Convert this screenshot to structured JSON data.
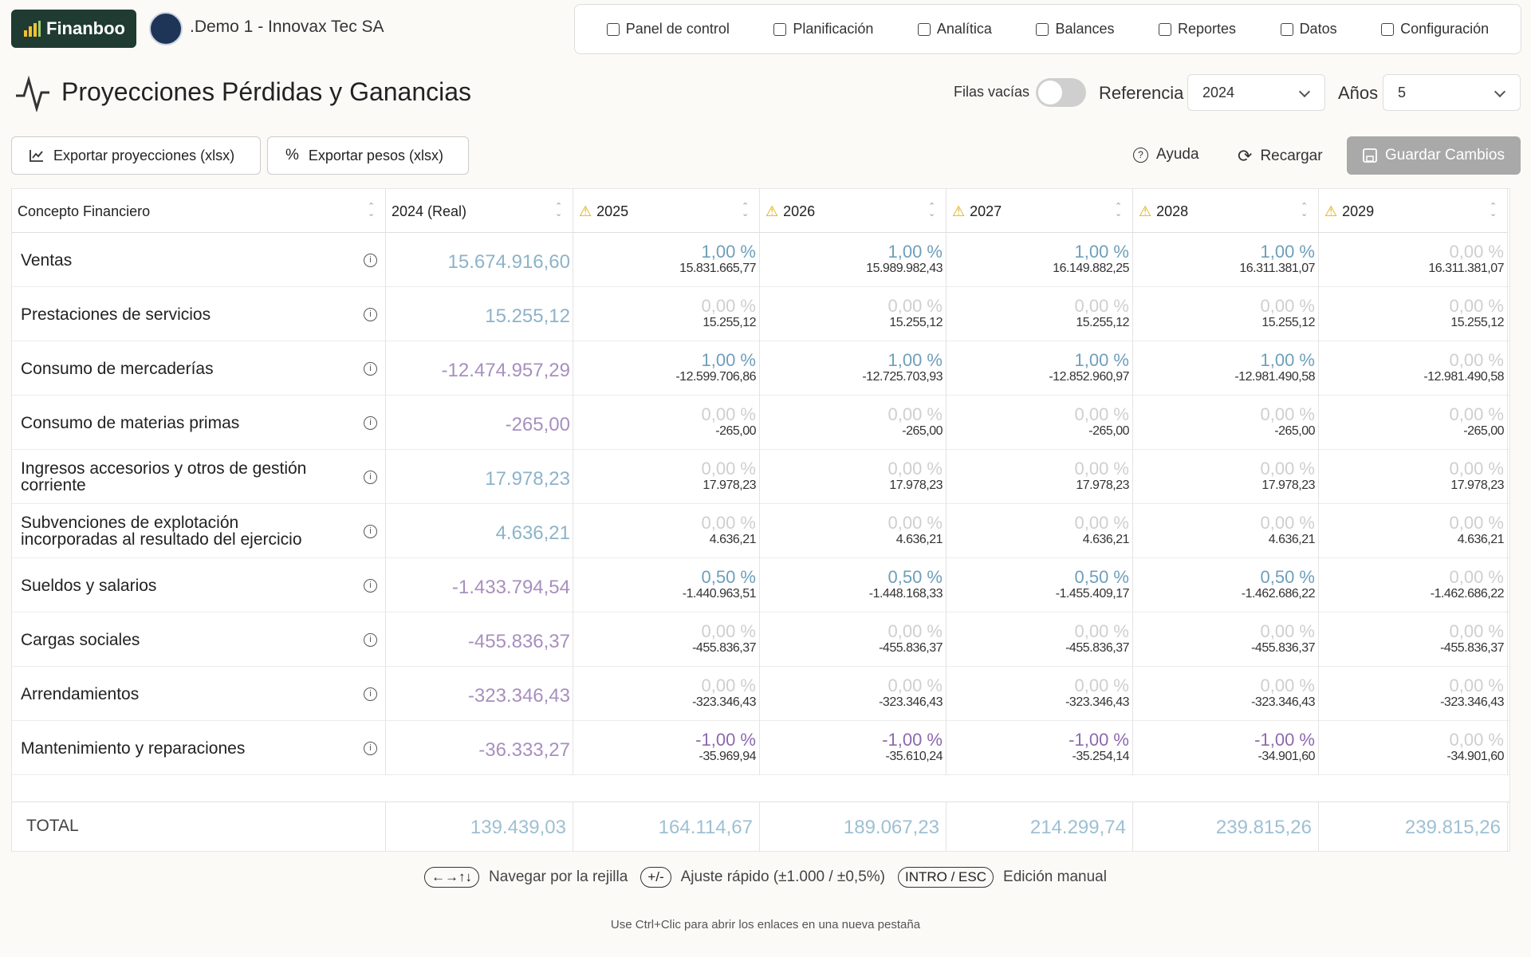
{
  "brand": "Finanboo",
  "company": ".Demo 1 - Innovax Tec SA",
  "nav": [
    "Panel de control",
    "Planificación",
    "Analítica",
    "Balances",
    "Reportes",
    "Datos",
    "Configuración"
  ],
  "page_title": "Proyecciones Pérdidas y Ganancias",
  "controls": {
    "empty_rows_label": "Filas vacías",
    "reference_label": "Referencia",
    "reference_value": "2024",
    "years_label": "Años",
    "years_value": "5"
  },
  "buttons": {
    "export_projections": "Exportar proyecciones (xlsx)",
    "export_weights": "Exportar pesos (xlsx)",
    "help": "Ayuda",
    "reload": "Recargar",
    "save": "Guardar Cambios"
  },
  "table": {
    "columns": [
      "Concepto Financiero",
      "2024 (Real)",
      "2025",
      "2026",
      "2027",
      "2028",
      "2029"
    ],
    "rows": [
      {
        "concept": "Ventas",
        "real": "15.674.916,60",
        "cells": [
          {
            "pct": "1,00 %",
            "amount": "15.831.665,77"
          },
          {
            "pct": "1,00 %",
            "amount": "15.989.982,43"
          },
          {
            "pct": "1,00 %",
            "amount": "16.149.882,25"
          },
          {
            "pct": "1,00 %",
            "amount": "16.311.381,07"
          },
          {
            "pct": "0,00 %",
            "amount": "16.311.381,07"
          }
        ]
      },
      {
        "concept": "Prestaciones de servicios",
        "real": "15.255,12",
        "cells": [
          {
            "pct": "0,00 %",
            "amount": "15.255,12"
          },
          {
            "pct": "0,00 %",
            "amount": "15.255,12"
          },
          {
            "pct": "0,00 %",
            "amount": "15.255,12"
          },
          {
            "pct": "0,00 %",
            "amount": "15.255,12"
          },
          {
            "pct": "0,00 %",
            "amount": "15.255,12"
          }
        ]
      },
      {
        "concept": "Consumo de mercaderías",
        "real": "-12.474.957,29",
        "cells": [
          {
            "pct": "1,00 %",
            "amount": "-12.599.706,86"
          },
          {
            "pct": "1,00 %",
            "amount": "-12.725.703,93"
          },
          {
            "pct": "1,00 %",
            "amount": "-12.852.960,97"
          },
          {
            "pct": "1,00 %",
            "amount": "-12.981.490,58"
          },
          {
            "pct": "0,00 %",
            "amount": "-12.981.490,58"
          }
        ]
      },
      {
        "concept": "Consumo de materias primas",
        "real": "-265,00",
        "cells": [
          {
            "pct": "0,00 %",
            "amount": "-265,00"
          },
          {
            "pct": "0,00 %",
            "amount": "-265,00"
          },
          {
            "pct": "0,00 %",
            "amount": "-265,00"
          },
          {
            "pct": "0,00 %",
            "amount": "-265,00"
          },
          {
            "pct": "0,00 %",
            "amount": "-265,00"
          }
        ]
      },
      {
        "concept": "Ingresos accesorios y otros de gestión corriente",
        "real": "17.978,23",
        "cells": [
          {
            "pct": "0,00 %",
            "amount": "17.978,23"
          },
          {
            "pct": "0,00 %",
            "amount": "17.978,23"
          },
          {
            "pct": "0,00 %",
            "amount": "17.978,23"
          },
          {
            "pct": "0,00 %",
            "amount": "17.978,23"
          },
          {
            "pct": "0,00 %",
            "amount": "17.978,23"
          }
        ]
      },
      {
        "concept": "Subvenciones de explotación incorporadas al resultado del ejercicio",
        "real": "4.636,21",
        "cells": [
          {
            "pct": "0,00 %",
            "amount": "4.636,21"
          },
          {
            "pct": "0,00 %",
            "amount": "4.636,21"
          },
          {
            "pct": "0,00 %",
            "amount": "4.636,21"
          },
          {
            "pct": "0,00 %",
            "amount": "4.636,21"
          },
          {
            "pct": "0,00 %",
            "amount": "4.636,21"
          }
        ]
      },
      {
        "concept": "Sueldos y salarios",
        "real": "-1.433.794,54",
        "cells": [
          {
            "pct": "0,50 %",
            "amount": "-1.440.963,51"
          },
          {
            "pct": "0,50 %",
            "amount": "-1.448.168,33"
          },
          {
            "pct": "0,50 %",
            "amount": "-1.455.409,17"
          },
          {
            "pct": "0,50 %",
            "amount": "-1.462.686,22"
          },
          {
            "pct": "0,00 %",
            "amount": "-1.462.686,22"
          }
        ]
      },
      {
        "concept": "Cargas sociales",
        "real": "-455.836,37",
        "cells": [
          {
            "pct": "0,00 %",
            "amount": "-455.836,37"
          },
          {
            "pct": "0,00 %",
            "amount": "-455.836,37"
          },
          {
            "pct": "0,00 %",
            "amount": "-455.836,37"
          },
          {
            "pct": "0,00 %",
            "amount": "-455.836,37"
          },
          {
            "pct": "0,00 %",
            "amount": "-455.836,37"
          }
        ]
      },
      {
        "concept": "Arrendamientos",
        "real": "-323.346,43",
        "cells": [
          {
            "pct": "0,00 %",
            "amount": "-323.346,43"
          },
          {
            "pct": "0,00 %",
            "amount": "-323.346,43"
          },
          {
            "pct": "0,00 %",
            "amount": "-323.346,43"
          },
          {
            "pct": "0,00 %",
            "amount": "-323.346,43"
          },
          {
            "pct": "0,00 %",
            "amount": "-323.346,43"
          }
        ]
      },
      {
        "concept": "Mantenimiento y reparaciones",
        "real": "-36.333,27",
        "cells": [
          {
            "pct": "-1,00 %",
            "amount": "-35.969,94"
          },
          {
            "pct": "-1,00 %",
            "amount": "-35.610,24"
          },
          {
            "pct": "-1,00 %",
            "amount": "-35.254,14"
          },
          {
            "pct": "-1,00 %",
            "amount": "-34.901,60"
          },
          {
            "pct": "0,00 %",
            "amount": "-34.901,60"
          }
        ]
      }
    ],
    "total": {
      "label": "TOTAL",
      "values": [
        "139.439,03",
        "164.114,67",
        "189.067,23",
        "214.299,74",
        "239.815,26",
        "239.815,26"
      ]
    }
  },
  "shortcuts": [
    {
      "key": "←→↑↓",
      "text": "Navegar por la rejilla"
    },
    {
      "key": "+/-",
      "text": "Ajuste rápido (±1.000 / ±0,5%)"
    },
    {
      "key": "INTRO / ESC",
      "text": "Edición manual"
    }
  ],
  "footer_note": "Use Ctrl+Clic para abrir los enlaces en una nueva pestaña"
}
